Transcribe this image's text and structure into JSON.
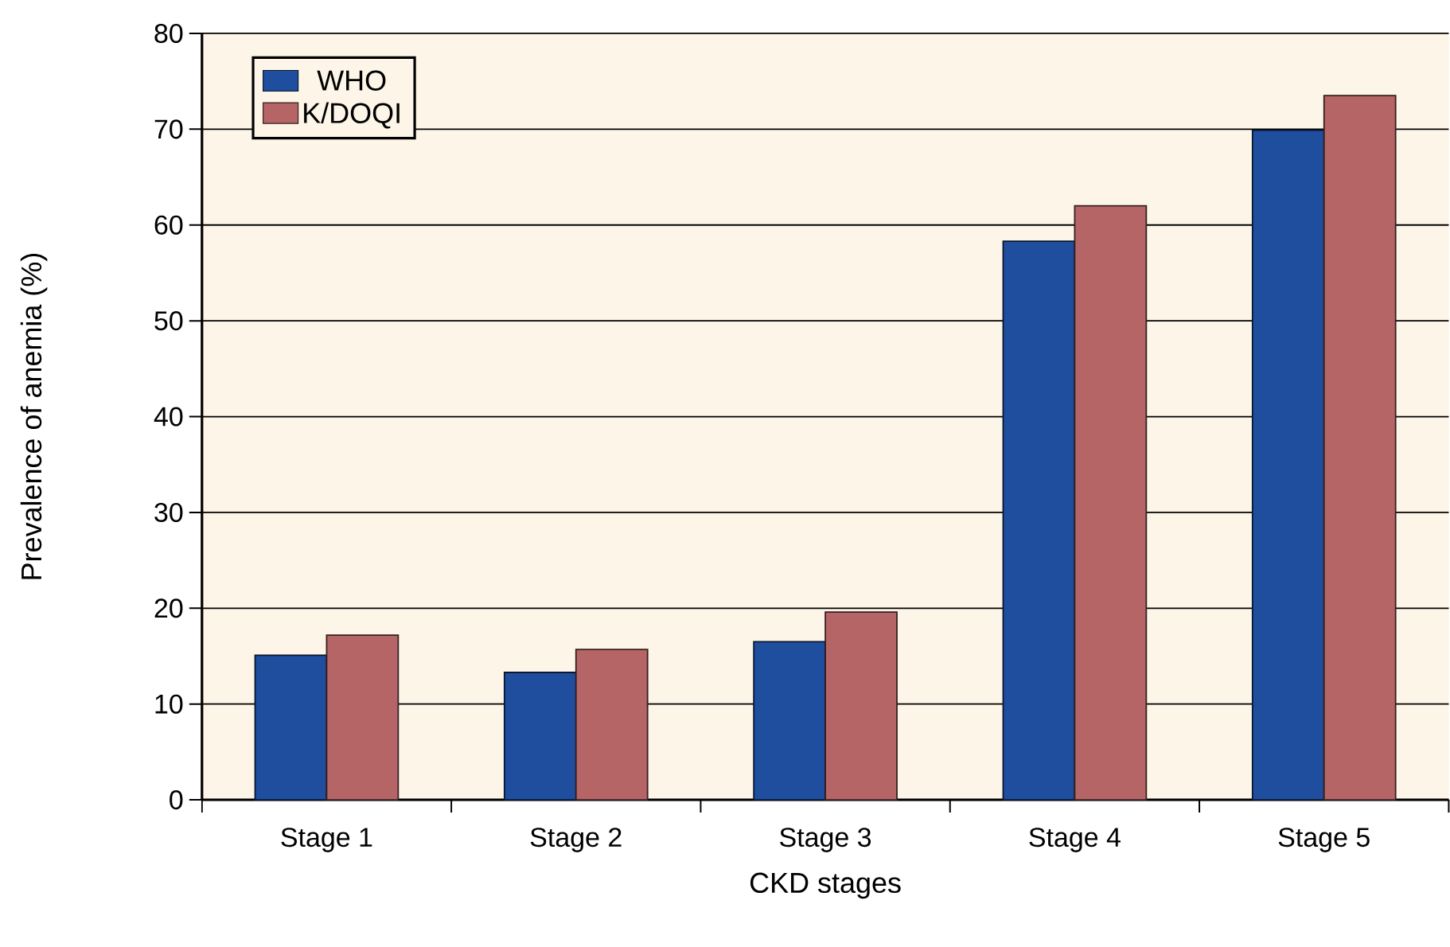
{
  "chart_data": {
    "type": "bar",
    "xlabel": "CKD stages",
    "ylabel": "Prevalence of anemia (%)",
    "categories": [
      "Stage 1",
      "Stage 2",
      "Stage 3",
      "Stage 4",
      "Stage 5"
    ],
    "series": [
      {
        "name": "WHO",
        "color": "#1f4e9e",
        "values": [
          15.1,
          13.3,
          16.5,
          58.3,
          69.9
        ]
      },
      {
        "name": "K/DOQI",
        "color": "#b56566",
        "values": [
          17.2,
          15.7,
          19.6,
          62.0,
          73.5
        ]
      }
    ],
    "ylim": [
      0,
      80
    ],
    "yticks": [
      0,
      10,
      20,
      30,
      40,
      50,
      60,
      70,
      80
    ],
    "grid": "y",
    "legend": "top left"
  }
}
